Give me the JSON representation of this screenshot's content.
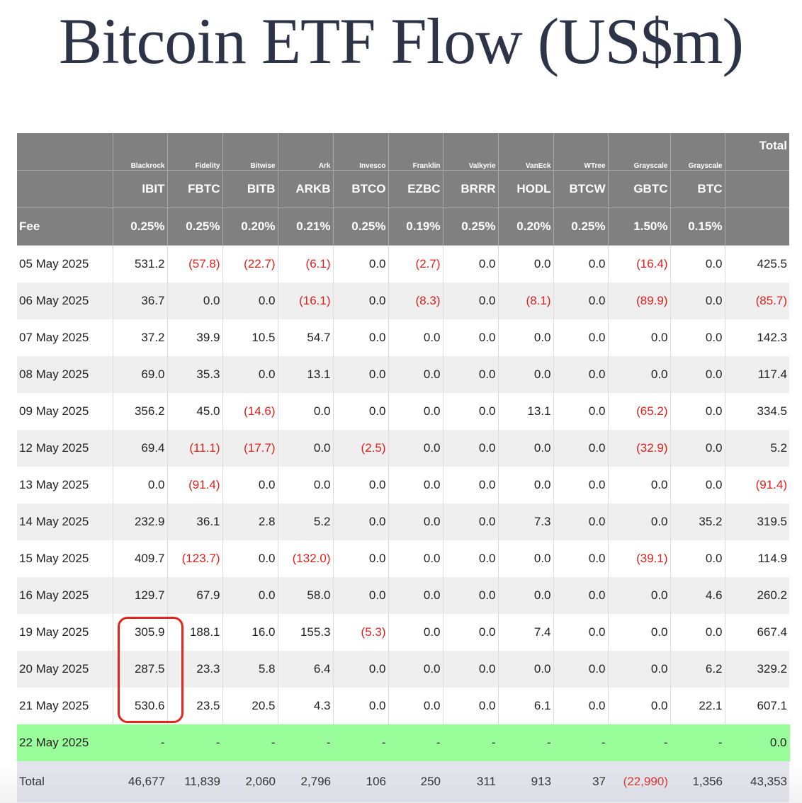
{
  "title": "Bitcoin ETF Flow (US$m)",
  "colors": {
    "header_bg": "#808080",
    "negative": "#e0201b",
    "today_bg": "#99fd99",
    "total_bg": "#e3e5ee",
    "highlight": "#e8231d"
  },
  "columns": [
    {
      "issuer": "Blackrock",
      "ticker": "IBIT",
      "fee": "0.25%"
    },
    {
      "issuer": "Fidelity",
      "ticker": "FBTC",
      "fee": "0.25%"
    },
    {
      "issuer": "Bitwise",
      "ticker": "BITB",
      "fee": "0.20%"
    },
    {
      "issuer": "Ark",
      "ticker": "ARKB",
      "fee": "0.21%"
    },
    {
      "issuer": "Invesco",
      "ticker": "BTCO",
      "fee": "0.25%"
    },
    {
      "issuer": "Franklin",
      "ticker": "EZBC",
      "fee": "0.19%"
    },
    {
      "issuer": "Valkyrie",
      "ticker": "BRRR",
      "fee": "0.25%"
    },
    {
      "issuer": "VanEck",
      "ticker": "HODL",
      "fee": "0.20%"
    },
    {
      "issuer": "WTree",
      "ticker": "BTCW",
      "fee": "0.25%"
    },
    {
      "issuer": "Grayscale",
      "ticker": "GBTC",
      "fee": "1.50%"
    },
    {
      "issuer": "Grayscale",
      "ticker": "BTC",
      "fee": "0.15%"
    }
  ],
  "total_header": "Total",
  "fee_label": "Fee",
  "rows": [
    {
      "date": "05 May 2025",
      "values": [
        "531.2",
        "(57.8)",
        "(22.7)",
        "(6.1)",
        "0.0",
        "(2.7)",
        "0.0",
        "0.0",
        "0.0",
        "(16.4)",
        "0.0"
      ],
      "total": "425.5"
    },
    {
      "date": "06 May 2025",
      "values": [
        "36.7",
        "0.0",
        "0.0",
        "(16.1)",
        "0.0",
        "(8.3)",
        "0.0",
        "(8.1)",
        "0.0",
        "(89.9)",
        "0.0"
      ],
      "total": "(85.7)"
    },
    {
      "date": "07 May 2025",
      "values": [
        "37.2",
        "39.9",
        "10.5",
        "54.7",
        "0.0",
        "0.0",
        "0.0",
        "0.0",
        "0.0",
        "0.0",
        "0.0"
      ],
      "total": "142.3"
    },
    {
      "date": "08 May 2025",
      "values": [
        "69.0",
        "35.3",
        "0.0",
        "13.1",
        "0.0",
        "0.0",
        "0.0",
        "0.0",
        "0.0",
        "0.0",
        "0.0"
      ],
      "total": "117.4"
    },
    {
      "date": "09 May 2025",
      "values": [
        "356.2",
        "45.0",
        "(14.6)",
        "0.0",
        "0.0",
        "0.0",
        "0.0",
        "13.1",
        "0.0",
        "(65.2)",
        "0.0"
      ],
      "total": "334.5"
    },
    {
      "date": "12 May 2025",
      "values": [
        "69.4",
        "(11.1)",
        "(17.7)",
        "0.0",
        "(2.5)",
        "0.0",
        "0.0",
        "0.0",
        "0.0",
        "(32.9)",
        "0.0"
      ],
      "total": "5.2"
    },
    {
      "date": "13 May 2025",
      "values": [
        "0.0",
        "(91.4)",
        "0.0",
        "0.0",
        "0.0",
        "0.0",
        "0.0",
        "0.0",
        "0.0",
        "0.0",
        "0.0"
      ],
      "total": "(91.4)"
    },
    {
      "date": "14 May 2025",
      "values": [
        "232.9",
        "36.1",
        "2.8",
        "5.2",
        "0.0",
        "0.0",
        "0.0",
        "7.3",
        "0.0",
        "0.0",
        "35.2"
      ],
      "total": "319.5"
    },
    {
      "date": "15 May 2025",
      "values": [
        "409.7",
        "(123.7)",
        "0.0",
        "(132.0)",
        "0.0",
        "0.0",
        "0.0",
        "0.0",
        "0.0",
        "(39.1)",
        "0.0"
      ],
      "total": "114.9"
    },
    {
      "date": "16 May 2025",
      "values": [
        "129.7",
        "67.9",
        "0.0",
        "58.0",
        "0.0",
        "0.0",
        "0.0",
        "0.0",
        "0.0",
        "0.0",
        "4.6"
      ],
      "total": "260.2"
    },
    {
      "date": "19 May 2025",
      "values": [
        "305.9",
        "188.1",
        "16.0",
        "155.3",
        "(5.3)",
        "0.0",
        "0.0",
        "7.4",
        "0.0",
        "0.0",
        "0.0"
      ],
      "total": "667.4"
    },
    {
      "date": "20 May 2025",
      "values": [
        "287.5",
        "23.3",
        "5.8",
        "6.4",
        "0.0",
        "0.0",
        "0.0",
        "0.0",
        "0.0",
        "0.0",
        "6.2"
      ],
      "total": "329.2"
    },
    {
      "date": "21 May 2025",
      "values": [
        "530.6",
        "23.5",
        "20.5",
        "4.3",
        "0.0",
        "0.0",
        "0.0",
        "6.1",
        "0.0",
        "0.0",
        "22.1"
      ],
      "total": "607.1"
    },
    {
      "date": "22 May 2025",
      "values": [
        "-",
        "-",
        "-",
        "-",
        "-",
        "-",
        "-",
        "-",
        "-",
        "-",
        "-"
      ],
      "total": "0.0",
      "today": true
    }
  ],
  "totals": {
    "label": "Total",
    "values": [
      "46,677",
      "11,839",
      "2,060",
      "2,796",
      "106",
      "250",
      "311",
      "913",
      "37",
      "(22,990)",
      "1,356"
    ],
    "total": "43,353"
  }
}
